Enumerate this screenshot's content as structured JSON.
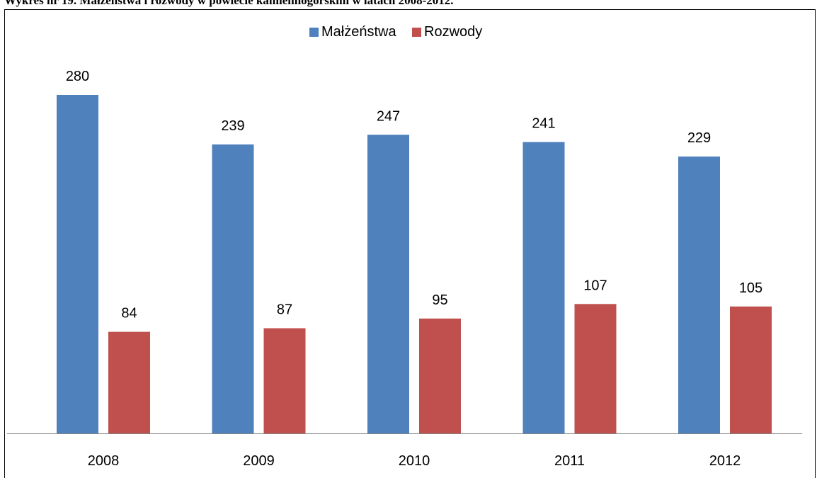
{
  "caption": "Wykres nr 19. Małżeństwa i rozwody w powiecie kamiennogórskim w latach 2008-2012.",
  "chart_data": {
    "type": "bar",
    "categories": [
      "2008",
      "2009",
      "2010",
      "2011",
      "2012"
    ],
    "series": [
      {
        "name": "Małżeństwa",
        "values": [
          280,
          239,
          247,
          241,
          229
        ],
        "color": "#4F81BD"
      },
      {
        "name": "Rozwody",
        "values": [
          84,
          87,
          95,
          107,
          105
        ],
        "color": "#C0504D"
      }
    ],
    "ylim": [
      0,
      280
    ],
    "legend": "top-center",
    "grid": false,
    "data_labels": true
  }
}
